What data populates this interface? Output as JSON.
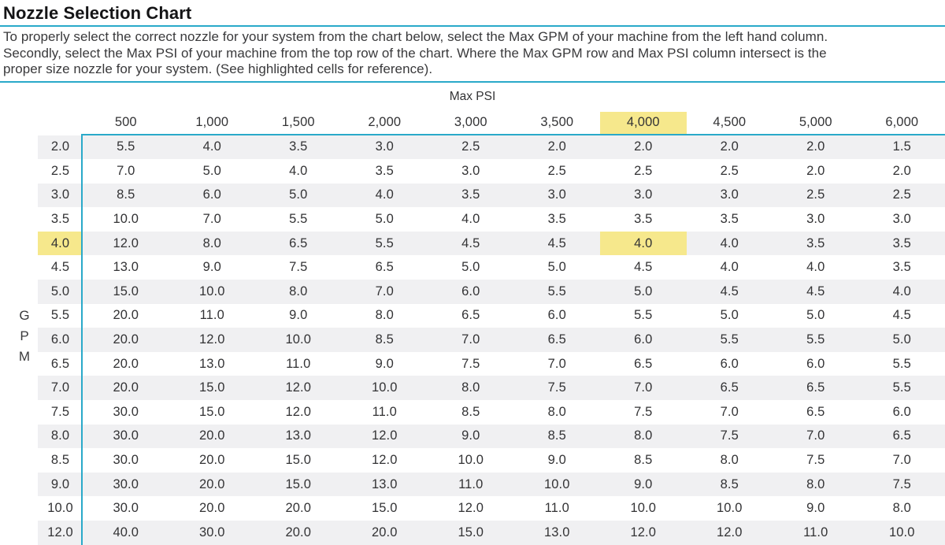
{
  "page": {
    "title": "Nozzle Selection Chart",
    "instructions_lines": [
      "To properly select the correct nozzle for your system from the chart below, select the Max GPM of your machine from the left hand column.",
      "Secondly, select the Max PSI of your machine from the top row of the chart. Where the Max GPM row and Max PSI column intersect is the",
      "proper size nozzle for your system. (See highlighted cells for reference)."
    ],
    "accent_color": "#2AA9C9",
    "highlight_color": "#F6E88C",
    "stripe_color": "#F0F0F2"
  },
  "chart_data": {
    "type": "table",
    "title": "Nozzle Selection Chart",
    "columns_header_label": "Max PSI",
    "rows_header_label": "GPM",
    "gpm_letters": [
      "G",
      "P",
      "M"
    ],
    "psi_columns": [
      "500",
      "1,000",
      "1,500",
      "2,000",
      "3,000",
      "3,500",
      "4,000",
      "4,500",
      "5,000",
      "6,000"
    ],
    "rows": [
      {
        "gpm": "2.0",
        "values": [
          "5.5",
          "4.0",
          "3.5",
          "3.0",
          "2.5",
          "2.0",
          "2.0",
          "2.0",
          "2.0",
          "1.5"
        ]
      },
      {
        "gpm": "2.5",
        "values": [
          "7.0",
          "5.0",
          "4.0",
          "3.5",
          "3.0",
          "2.5",
          "2.5",
          "2.5",
          "2.0",
          "2.0"
        ]
      },
      {
        "gpm": "3.0",
        "values": [
          "8.5",
          "6.0",
          "5.0",
          "4.0",
          "3.5",
          "3.0",
          "3.0",
          "3.0",
          "2.5",
          "2.5"
        ]
      },
      {
        "gpm": "3.5",
        "values": [
          "10.0",
          "7.0",
          "5.5",
          "5.0",
          "4.0",
          "3.5",
          "3.5",
          "3.5",
          "3.0",
          "3.0"
        ]
      },
      {
        "gpm": "4.0",
        "values": [
          "12.0",
          "8.0",
          "6.5",
          "5.5",
          "4.5",
          "4.5",
          "4.0",
          "4.0",
          "3.5",
          "3.5"
        ]
      },
      {
        "gpm": "4.5",
        "values": [
          "13.0",
          "9.0",
          "7.5",
          "6.5",
          "5.0",
          "5.0",
          "4.5",
          "4.0",
          "4.0",
          "3.5"
        ]
      },
      {
        "gpm": "5.0",
        "values": [
          "15.0",
          "10.0",
          "8.0",
          "7.0",
          "6.0",
          "5.5",
          "5.0",
          "4.5",
          "4.5",
          "4.0"
        ]
      },
      {
        "gpm": "5.5",
        "values": [
          "20.0",
          "11.0",
          "9.0",
          "8.0",
          "6.5",
          "6.0",
          "5.5",
          "5.0",
          "5.0",
          "4.5"
        ]
      },
      {
        "gpm": "6.0",
        "values": [
          "20.0",
          "12.0",
          "10.0",
          "8.5",
          "7.0",
          "6.5",
          "6.0",
          "5.5",
          "5.5",
          "5.0"
        ]
      },
      {
        "gpm": "6.5",
        "values": [
          "20.0",
          "13.0",
          "11.0",
          "9.0",
          "7.5",
          "7.0",
          "6.5",
          "6.0",
          "6.0",
          "5.5"
        ]
      },
      {
        "gpm": "7.0",
        "values": [
          "20.0",
          "15.0",
          "12.0",
          "10.0",
          "8.0",
          "7.5",
          "7.0",
          "6.5",
          "6.5",
          "5.5"
        ]
      },
      {
        "gpm": "7.5",
        "values": [
          "30.0",
          "15.0",
          "12.0",
          "11.0",
          "8.5",
          "8.0",
          "7.5",
          "7.0",
          "6.5",
          "6.0"
        ]
      },
      {
        "gpm": "8.0",
        "values": [
          "30.0",
          "20.0",
          "13.0",
          "12.0",
          "9.0",
          "8.5",
          "8.0",
          "7.5",
          "7.0",
          "6.5"
        ]
      },
      {
        "gpm": "8.5",
        "values": [
          "30.0",
          "20.0",
          "15.0",
          "12.0",
          "10.0",
          "9.0",
          "8.5",
          "8.0",
          "7.5",
          "7.0"
        ]
      },
      {
        "gpm": "9.0",
        "values": [
          "30.0",
          "20.0",
          "15.0",
          "13.0",
          "11.0",
          "10.0",
          "9.0",
          "8.5",
          "8.0",
          "7.5"
        ]
      },
      {
        "gpm": "10.0",
        "values": [
          "30.0",
          "20.0",
          "20.0",
          "15.0",
          "12.0",
          "11.0",
          "10.0",
          "10.0",
          "9.0",
          "8.0"
        ]
      },
      {
        "gpm": "12.0",
        "values": [
          "40.0",
          "30.0",
          "20.0",
          "20.0",
          "15.0",
          "13.0",
          "12.0",
          "12.0",
          "11.0",
          "10.0"
        ]
      }
    ],
    "highlight": {
      "psi_column": "4,000",
      "psi_col_index": 6,
      "gpm_row": "4.0",
      "gpm_row_index": 4,
      "intersection_value": "4.0"
    }
  }
}
